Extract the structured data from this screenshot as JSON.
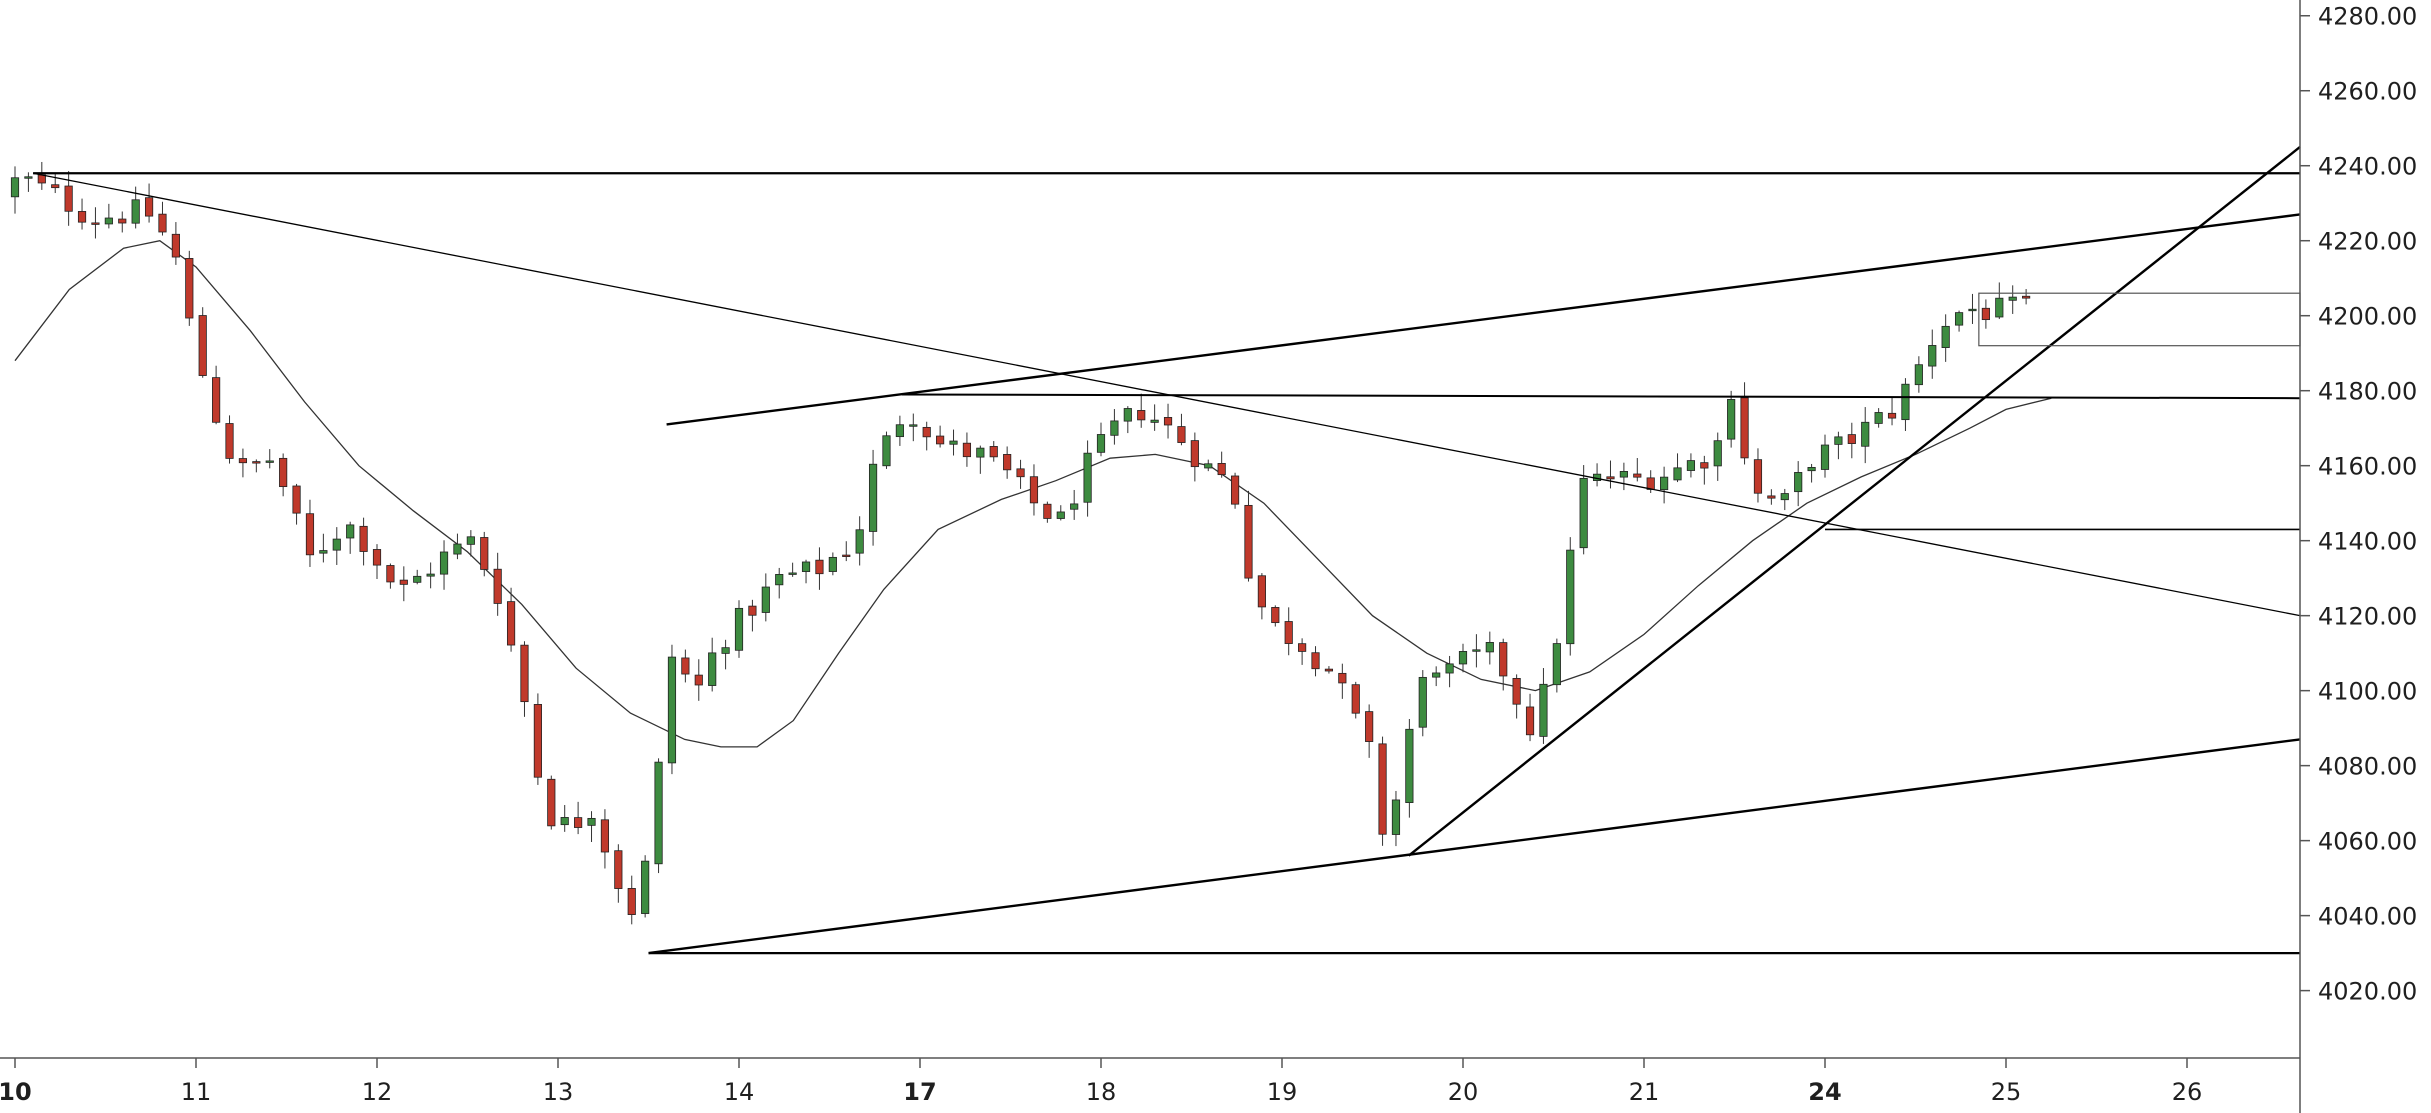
{
  "chart_data": {
    "type": "candlestick",
    "y_axis": {
      "range": [
        4012,
        4288
      ],
      "ticks": [
        "4280.00",
        "4260.00",
        "4240.00",
        "4220.00",
        "4200.00",
        "4180.00",
        "4160.00",
        "4140.00",
        "4120.00",
        "4100.00",
        "4080.00",
        "4060.00",
        "4040.00",
        "4020.00"
      ],
      "tick_values": [
        4280,
        4260,
        4240,
        4220,
        4200,
        4180,
        4160,
        4140,
        4120,
        4100,
        4080,
        4060,
        4040,
        4020
      ]
    },
    "x_axis": {
      "range": [
        10.0,
        26.8
      ],
      "ticks": [
        {
          "label": "10",
          "day": 10,
          "bold": true
        },
        {
          "label": "11",
          "day": 11,
          "bold": false
        },
        {
          "label": "12",
          "day": 12,
          "bold": false
        },
        {
          "label": "13",
          "day": 13,
          "bold": false
        },
        {
          "label": "14",
          "day": 14,
          "bold": false
        },
        {
          "label": "17",
          "day": 15,
          "bold": true
        },
        {
          "label": "18",
          "day": 16,
          "bold": false
        },
        {
          "label": "19",
          "day": 17,
          "bold": false
        },
        {
          "label": "20",
          "day": 18,
          "bold": false
        },
        {
          "label": "21",
          "day": 19,
          "bold": false
        },
        {
          "label": "24",
          "day": 20,
          "bold": true
        },
        {
          "label": "25",
          "day": 21,
          "bold": false
        },
        {
          "label": "26",
          "day": 22,
          "bold": false
        }
      ]
    },
    "colors": {
      "up": "#3d8b40",
      "down": "#c0392b",
      "wick": "#333333",
      "line": "#000000",
      "ma": "#333333",
      "axis": "#555555"
    },
    "anchors": [
      {
        "t": 10.0,
        "p": 4232
      },
      {
        "t": 10.1,
        "p": 4237
      },
      {
        "t": 10.3,
        "p": 4232
      },
      {
        "t": 10.5,
        "p": 4226
      },
      {
        "t": 10.8,
        "p": 4228
      },
      {
        "t": 10.95,
        "p": 4218
      },
      {
        "t": 11.05,
        "p": 4195
      },
      {
        "t": 11.15,
        "p": 4178
      },
      {
        "t": 11.3,
        "p": 4158
      },
      {
        "t": 11.5,
        "p": 4162
      },
      {
        "t": 11.7,
        "p": 4135
      },
      {
        "t": 11.9,
        "p": 4145
      },
      {
        "t": 12.0,
        "p": 4140
      },
      {
        "t": 12.2,
        "p": 4126
      },
      {
        "t": 12.45,
        "p": 4136
      },
      {
        "t": 12.6,
        "p": 4140
      },
      {
        "t": 12.75,
        "p": 4125
      },
      {
        "t": 12.9,
        "p": 4095
      },
      {
        "t": 13.0,
        "p": 4068
      },
      {
        "t": 13.15,
        "p": 4063
      },
      {
        "t": 13.25,
        "p": 4070
      },
      {
        "t": 13.4,
        "p": 4050
      },
      {
        "t": 13.47,
        "p": 4040
      },
      {
        "t": 13.6,
        "p": 4060
      },
      {
        "t": 13.67,
        "p": 4105
      },
      {
        "t": 13.75,
        "p": 4115
      },
      {
        "t": 13.8,
        "p": 4095
      },
      {
        "t": 13.95,
        "p": 4112
      },
      {
        "t": 14.1,
        "p": 4120
      },
      {
        "t": 14.3,
        "p": 4130
      },
      {
        "t": 14.5,
        "p": 4132
      },
      {
        "t": 14.72,
        "p": 4140
      },
      {
        "t": 14.82,
        "p": 4160
      },
      {
        "t": 15.0,
        "p": 4176
      },
      {
        "t": 15.2,
        "p": 4165
      },
      {
        "t": 15.4,
        "p": 4163
      },
      {
        "t": 15.55,
        "p": 4158
      },
      {
        "t": 15.7,
        "p": 4150
      },
      {
        "t": 15.85,
        "p": 4145
      },
      {
        "t": 16.0,
        "p": 4160
      },
      {
        "t": 16.15,
        "p": 4170
      },
      {
        "t": 16.3,
        "p": 4175
      },
      {
        "t": 16.5,
        "p": 4168
      },
      {
        "t": 16.65,
        "p": 4160
      },
      {
        "t": 16.8,
        "p": 4155
      },
      {
        "t": 16.9,
        "p": 4130
      },
      {
        "t": 17.0,
        "p": 4118
      },
      {
        "t": 17.2,
        "p": 4112
      },
      {
        "t": 17.35,
        "p": 4105
      },
      {
        "t": 17.45,
        "p": 4095
      },
      {
        "t": 17.55,
        "p": 4085
      },
      {
        "t": 17.63,
        "p": 4063
      },
      {
        "t": 17.7,
        "p": 4070
      },
      {
        "t": 17.8,
        "p": 4095
      },
      {
        "t": 17.9,
        "p": 4108
      },
      {
        "t": 18.0,
        "p": 4105
      },
      {
        "t": 18.1,
        "p": 4108
      },
      {
        "t": 18.25,
        "p": 4110
      },
      {
        "t": 18.35,
        "p": 4100
      },
      {
        "t": 18.45,
        "p": 4090
      },
      {
        "t": 18.55,
        "p": 4103
      },
      {
        "t": 18.65,
        "p": 4130
      },
      {
        "t": 18.72,
        "p": 4155
      },
      {
        "t": 18.9,
        "p": 4157
      },
      {
        "t": 19.0,
        "p": 4156
      },
      {
        "t": 19.2,
        "p": 4158
      },
      {
        "t": 19.4,
        "p": 4162
      },
      {
        "t": 19.52,
        "p": 4168
      },
      {
        "t": 19.55,
        "p": 4182
      },
      {
        "t": 19.62,
        "p": 4165
      },
      {
        "t": 19.7,
        "p": 4152
      },
      {
        "t": 19.85,
        "p": 4150
      },
      {
        "t": 20.0,
        "p": 4162
      },
      {
        "t": 20.15,
        "p": 4165
      },
      {
        "t": 20.3,
        "p": 4170
      },
      {
        "t": 20.45,
        "p": 4175
      },
      {
        "t": 20.58,
        "p": 4185
      },
      {
        "t": 20.7,
        "p": 4197
      },
      {
        "t": 20.85,
        "p": 4202
      },
      {
        "t": 21.0,
        "p": 4201
      },
      {
        "t": 21.15,
        "p": 4202
      }
    ],
    "moving_average": [
      [
        10.0,
        4188
      ],
      [
        10.3,
        4207
      ],
      [
        10.6,
        4218
      ],
      [
        10.8,
        4220
      ],
      [
        11.0,
        4213
      ],
      [
        11.3,
        4196
      ],
      [
        11.6,
        4177
      ],
      [
        11.9,
        4160
      ],
      [
        12.2,
        4148
      ],
      [
        12.5,
        4137
      ],
      [
        12.8,
        4123
      ],
      [
        13.1,
        4106
      ],
      [
        13.4,
        4094
      ],
      [
        13.7,
        4087
      ],
      [
        13.9,
        4085
      ],
      [
        14.1,
        4085
      ],
      [
        14.3,
        4092
      ],
      [
        14.55,
        4110
      ],
      [
        14.8,
        4127
      ],
      [
        15.1,
        4143
      ],
      [
        15.45,
        4151
      ],
      [
        15.75,
        4156
      ],
      [
        16.05,
        4162
      ],
      [
        16.3,
        4163
      ],
      [
        16.6,
        4160
      ],
      [
        16.9,
        4150
      ],
      [
        17.2,
        4135
      ],
      [
        17.5,
        4120
      ],
      [
        17.8,
        4110
      ],
      [
        18.1,
        4103
      ],
      [
        18.4,
        4100
      ],
      [
        18.7,
        4105
      ],
      [
        19.0,
        4115
      ],
      [
        19.3,
        4128
      ],
      [
        19.6,
        4140
      ],
      [
        19.9,
        4150
      ],
      [
        20.2,
        4157
      ],
      [
        20.5,
        4163
      ],
      [
        20.8,
        4170
      ],
      [
        21.0,
        4175
      ],
      [
        21.25,
        4178
      ]
    ],
    "trendlines": [
      {
        "name": "top-horizontal-resistance",
        "from": [
          10.1,
          4238
        ],
        "to": [
          26.8,
          4238
        ],
        "width": 2.2
      },
      {
        "name": "upper-channel-line",
        "from": [
          13.6,
          4171
        ],
        "to": [
          26.8,
          4227
        ],
        "width": 2.4
      },
      {
        "name": "descending-trendline",
        "from": [
          10.1,
          4238
        ],
        "to": [
          26.8,
          4120
        ],
        "width": 1.3
      },
      {
        "name": "resistance-4178",
        "from": [
          14.9,
          4179
        ],
        "to": [
          26.8,
          4178
        ],
        "width": 2
      },
      {
        "name": "support-4143",
        "from": [
          20.0,
          4143
        ],
        "to": [
          26.8,
          4143
        ],
        "width": 1.6
      },
      {
        "name": "ascending-support-line",
        "from": [
          17.7,
          4056
        ],
        "to": [
          26.8,
          4245
        ],
        "width": 2.4
      },
      {
        "name": "lower-channel-line",
        "from": [
          13.5,
          4030
        ],
        "to": [
          26.8,
          4087
        ],
        "width": 2.4
      },
      {
        "name": "bottom-horizontal-support",
        "from": [
          13.5,
          4030
        ],
        "to": [
          26.8,
          4030
        ],
        "width": 2.2
      }
    ],
    "range_box": {
      "from": [
        20.85,
        4206
      ],
      "to": [
        26.8,
        4192
      ]
    },
    "gridlines": false
  }
}
